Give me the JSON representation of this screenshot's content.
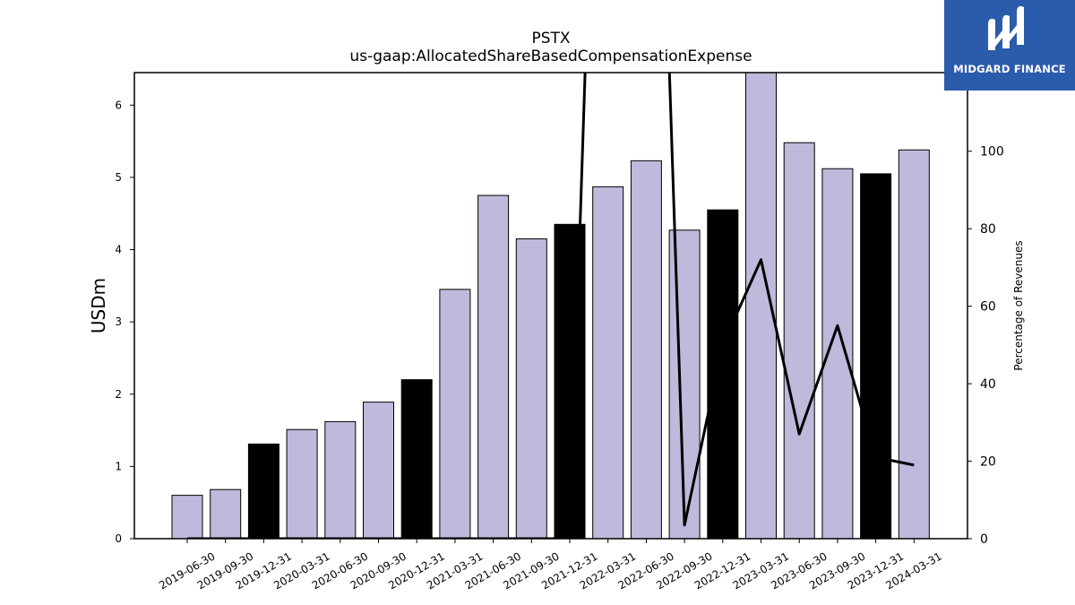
{
  "logo": {
    "text": "MIDGARD FINANCE",
    "bg_color": "#2b5bab",
    "icon": "midgard-m-logo"
  },
  "chart_data": {
    "type": "bar",
    "title": "PSTX",
    "subtitle": "us-gaap:AllocatedShareBasedCompensationExpense",
    "ylabel": "USDm",
    "y2label": "Percentage of Revenues",
    "ylim": [
      0,
      6.45
    ],
    "y2lim": [
      0,
      120.3
    ],
    "yticks": [
      0,
      1,
      2,
      3,
      4,
      5,
      6
    ],
    "y2ticks": [
      0,
      20,
      40,
      60,
      80,
      100
    ],
    "grid": false,
    "legend": "none",
    "categories": [
      "2019-06-30",
      "2019-09-30",
      "2019-12-31",
      "2020-03-31",
      "2020-06-30",
      "2020-09-30",
      "2020-12-31",
      "2021-03-31",
      "2021-06-30",
      "2021-09-30",
      "2021-12-31",
      "2022-03-31",
      "2022-06-30",
      "2022-09-30",
      "2022-12-31",
      "2023-03-31",
      "2023-06-30",
      "2023-09-30",
      "2023-12-31",
      "2024-03-31"
    ],
    "values": [
      0.6,
      0.68,
      1.31,
      1.51,
      1.62,
      1.89,
      2.2,
      3.45,
      4.75,
      4.15,
      4.35,
      4.87,
      5.23,
      4.27,
      4.55,
      6.5,
      5.48,
      5.12,
      5.05,
      5.38
    ],
    "bar_colors": [
      "#bdbadb",
      "#bdbadb",
      "#000000",
      "#bdbadb",
      "#bdbadb",
      "#bdbadb",
      "#000000",
      "#bdbadb",
      "#bdbadb",
      "#bdbadb",
      "#000000",
      "#bdbadb",
      "#bdbadb",
      "#bdbadb",
      "#000000",
      "#bdbadb",
      "#bdbadb",
      "#bdbadb",
      "#000000",
      "#bdbadb"
    ],
    "line_series": {
      "axis": "right",
      "color": "#000000",
      "values": [
        0,
        0,
        0,
        0,
        0,
        0,
        0,
        0,
        0,
        0,
        0,
        300,
        300,
        3.5,
        50,
        72,
        27,
        55,
        21,
        19
      ]
    }
  }
}
